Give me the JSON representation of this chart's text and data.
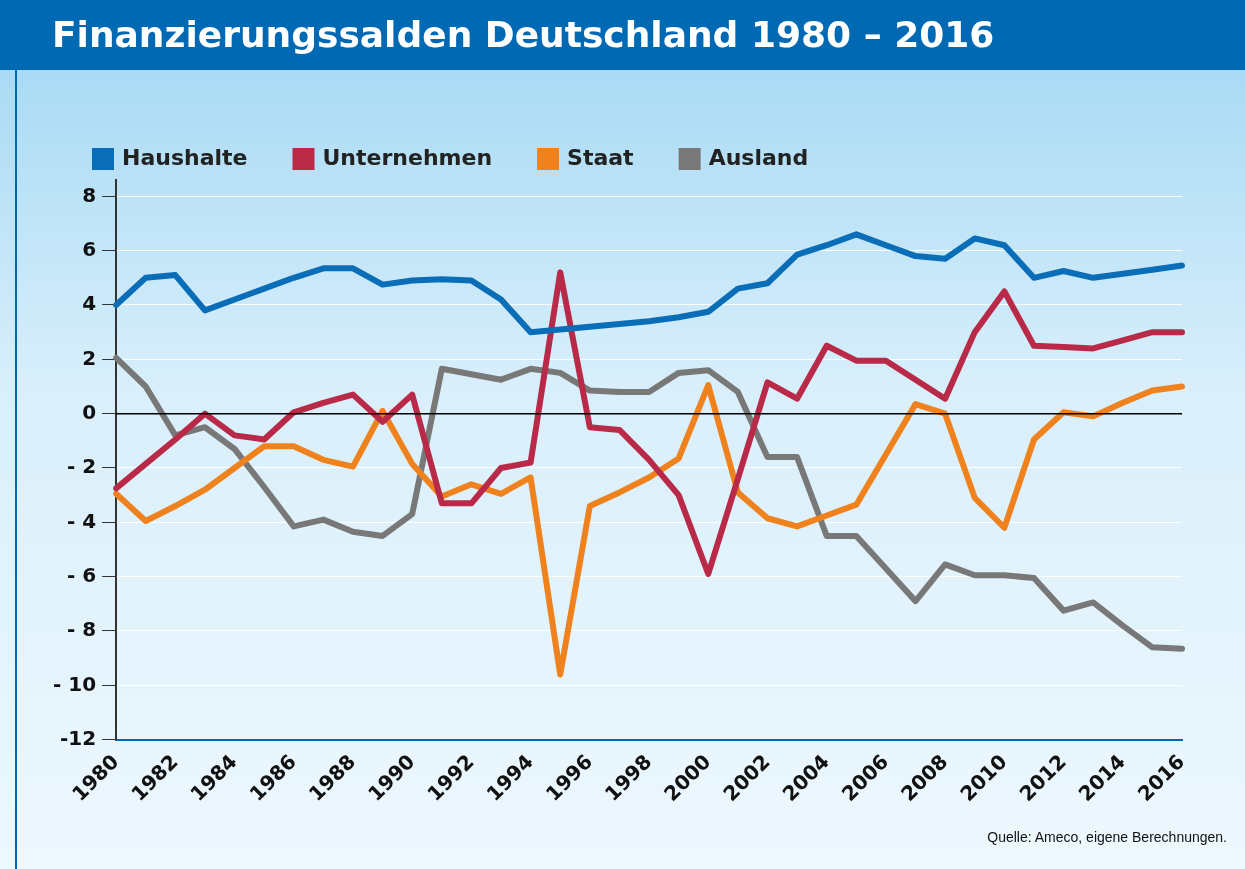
{
  "chart_data": {
    "type": "line",
    "title": "Finanzierungssalden Deutschland 1980 – 2016",
    "categories": [
      "1980",
      null,
      "1982",
      null,
      "1984",
      null,
      "1986",
      null,
      "1988",
      null,
      "1990",
      null,
      "1992",
      null,
      "1994",
      null,
      "1996",
      null,
      "1998",
      null,
      "2000",
      null,
      "2002",
      null,
      "2004",
      null,
      "2006",
      null,
      "2008",
      null,
      "2010",
      null,
      "2012",
      null,
      "2014",
      null,
      "2016"
    ],
    "series": [
      {
        "name": "Haushalte",
        "color": "#0a6db7",
        "values": [
          4.0,
          5.0,
          5.1,
          3.8,
          4.2,
          4.6,
          5.0,
          5.35,
          5.35,
          4.75,
          4.9,
          4.95,
          4.9,
          4.2,
          3.0,
          3.1,
          3.2,
          3.3,
          3.4,
          3.55,
          3.75,
          4.6,
          4.8,
          5.85,
          6.2,
          6.6,
          6.2,
          5.8,
          5.7,
          6.45,
          6.2,
          5.0,
          5.25,
          5.0,
          5.15,
          5.3,
          5.45
        ]
      },
      {
        "name": "Unternehmen",
        "color": "#b92a48",
        "values": [
          -2.75,
          -1.85,
          -0.95,
          0.0,
          -0.8,
          -0.95,
          0.05,
          0.4,
          0.7,
          -0.3,
          0.7,
          -3.3,
          -3.3,
          -2.0,
          -1.8,
          5.2,
          -0.5,
          -0.6,
          -1.7,
          -3.0,
          -5.9,
          -2.4,
          1.15,
          0.55,
          2.5,
          1.95,
          1.95,
          1.25,
          0.55,
          3.0,
          4.5,
          2.5,
          2.45,
          2.4,
          2.7,
          3.0,
          3.0
        ]
      },
      {
        "name": "Staat",
        "color": "#f0821e",
        "values": [
          -2.95,
          -3.95,
          -3.4,
          -2.8,
          -2.0,
          -1.2,
          -1.2,
          -1.7,
          -1.95,
          0.1,
          -1.85,
          -3.05,
          -2.6,
          -2.95,
          -2.35,
          -9.6,
          -3.4,
          -2.9,
          -2.35,
          -1.65,
          1.05,
          -2.9,
          -3.85,
          -4.15,
          -3.75,
          -3.35,
          -1.5,
          0.35,
          0.0,
          -3.1,
          -4.2,
          -0.95,
          0.05,
          -0.1,
          0.4,
          0.85,
          1.0
        ]
      },
      {
        "name": "Ausland",
        "color": "#787878",
        "values": [
          2.05,
          1.0,
          -0.8,
          -0.5,
          -1.3,
          -2.7,
          -4.15,
          -3.9,
          -4.35,
          -4.5,
          -3.7,
          1.65,
          1.45,
          1.25,
          1.65,
          1.5,
          0.85,
          0.8,
          0.8,
          1.5,
          1.6,
          0.8,
          -1.6,
          -1.6,
          -4.5,
          -4.5,
          -5.7,
          -6.9,
          -5.55,
          -5.95,
          -5.95,
          -6.05,
          -7.25,
          -6.95,
          -7.8,
          -8.6,
          -8.65
        ]
      }
    ],
    "ylim": [
      -12,
      8.6
    ],
    "yticks": [
      8,
      6,
      4,
      2,
      0,
      {
        "value": -2,
        "label": "- 2"
      },
      {
        "value": -4,
        "label": "- 4"
      },
      {
        "value": -6,
        "label": "- 6"
      },
      {
        "value": -8,
        "label": "- 8"
      },
      {
        "value": -10,
        "label": "- 10"
      },
      -12
    ],
    "ref_lines": [
      {
        "axis": "y",
        "value": 0,
        "color": "#000000"
      }
    ],
    "grid": "y",
    "legend": "top left",
    "marker": "none",
    "line_style": "solid",
    "annotations": [
      "Quelle: Ameco, eigene Berechnungen."
    ]
  }
}
